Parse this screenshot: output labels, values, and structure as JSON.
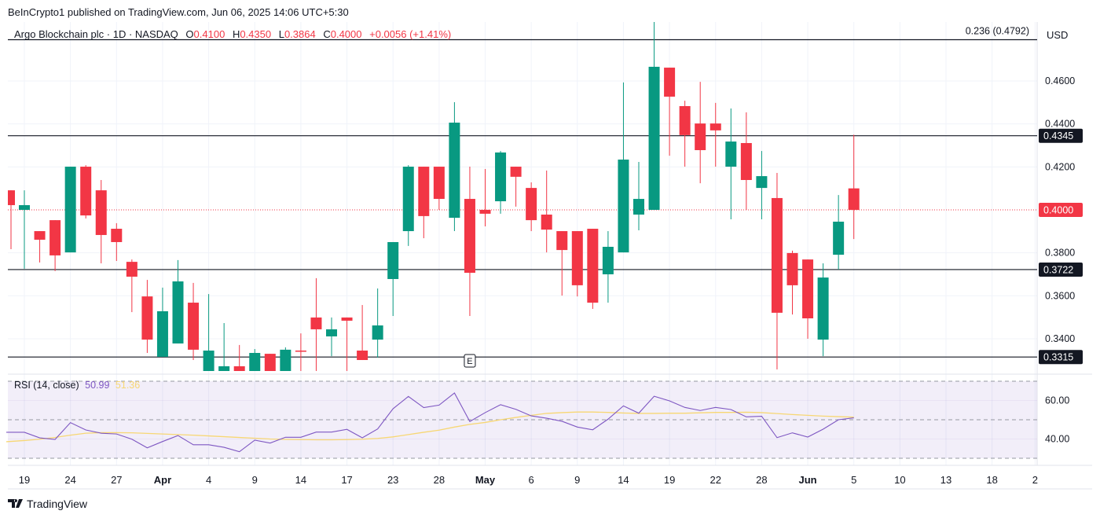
{
  "header": {
    "published": "BeInCrypto1 published on TradingView.com, Jun 06, 2025 14:06 UTC+5:30",
    "symbol": "Argo Blockchain plc · 1D · NASDAQ",
    "o_label": "O",
    "o_value": "0.4100",
    "h_label": "H",
    "h_value": "0.4350",
    "l_label": "L",
    "l_value": "0.3864",
    "c_label": "C",
    "c_value": "0.4000",
    "change": "+0.0056 (+1.41%)"
  },
  "footer": {
    "brand": "TradingView"
  },
  "colors": {
    "up": "#089981",
    "down": "#f23645",
    "rsi": "#7e57c2",
    "rsi_ma": "#f7d774",
    "level_line": "#131722"
  },
  "chart_data": [
    {
      "type": "candlestick",
      "currency": "USD",
      "ylim": [
        0.325,
        0.485
      ],
      "y_ticks": [
        "0.4600",
        "0.4400",
        "0.4200",
        "0.3800",
        "0.3600",
        "0.3400"
      ],
      "current_price": {
        "value": 0.4,
        "label": "0.4000"
      },
      "levels": [
        {
          "value": 0.4792,
          "label": "0.236 (0.4792)"
        },
        {
          "value": 0.4345,
          "label": "0.4345"
        },
        {
          "value": 0.3722,
          "label": "0.3722"
        },
        {
          "value": 0.3315,
          "label": "0.3315"
        }
      ],
      "event_marker": {
        "date": "Apr 30",
        "label": "E"
      },
      "x_ticks": [
        {
          "label": "19",
          "index": 1,
          "bold": false
        },
        {
          "label": "24",
          "index": 4,
          "bold": false
        },
        {
          "label": "27",
          "index": 7,
          "bold": false
        },
        {
          "label": "Apr",
          "index": 10,
          "bold": true
        },
        {
          "label": "4",
          "index": 13,
          "bold": false
        },
        {
          "label": "9",
          "index": 16,
          "bold": false
        },
        {
          "label": "14",
          "index": 19,
          "bold": false
        },
        {
          "label": "17",
          "index": 22,
          "bold": false
        },
        {
          "label": "23",
          "index": 25,
          "bold": false
        },
        {
          "label": "28",
          "index": 28,
          "bold": false
        },
        {
          "label": "May",
          "index": 31,
          "bold": true
        },
        {
          "label": "6",
          "index": 34,
          "bold": false
        },
        {
          "label": "9",
          "index": 37,
          "bold": false
        },
        {
          "label": "14",
          "index": 40,
          "bold": false
        },
        {
          "label": "19",
          "index": 43,
          "bold": false
        },
        {
          "label": "22",
          "index": 46,
          "bold": false
        },
        {
          "label": "28",
          "index": 49,
          "bold": false
        },
        {
          "label": "Jun",
          "index": 52,
          "bold": true
        },
        {
          "label": "5",
          "index": 55,
          "bold": false
        },
        {
          "label": "10",
          "index": 58,
          "bold": false
        },
        {
          "label": "13",
          "index": 61,
          "bold": false
        },
        {
          "label": "18",
          "index": 64,
          "bold": false
        },
        {
          "label": "2",
          "index": 66.8,
          "bold": false
        }
      ],
      "candles": [
        {
          "d": "Mar 18",
          "o": 0.4091,
          "h": 0.4091,
          "l": 0.3817,
          "c": 0.4022
        },
        {
          "d": "Mar 19",
          "o": 0.4,
          "h": 0.4091,
          "l": 0.3726,
          "c": 0.4022
        },
        {
          "d": "Mar 20",
          "o": 0.3901,
          "h": 0.3901,
          "l": 0.3755,
          "c": 0.3861
        },
        {
          "d": "Mar 21",
          "o": 0.3952,
          "h": 0.3952,
          "l": 0.3715,
          "c": 0.3788
        },
        {
          "d": "Mar 24",
          "o": 0.3802,
          "h": 0.4201,
          "l": 0.3802,
          "c": 0.4201
        },
        {
          "d": "Mar 25",
          "o": 0.4201,
          "h": 0.4208,
          "l": 0.396,
          "c": 0.3974
        },
        {
          "d": "Mar 26",
          "o": 0.4091,
          "h": 0.4139,
          "l": 0.3751,
          "c": 0.3883
        },
        {
          "d": "Mar 27",
          "o": 0.3912,
          "h": 0.3938,
          "l": 0.3762,
          "c": 0.385
        },
        {
          "d": "Mar 28",
          "o": 0.3758,
          "h": 0.3769,
          "l": 0.3524,
          "c": 0.3689
        },
        {
          "d": "Mar 31",
          "o": 0.3597,
          "h": 0.3674,
          "l": 0.3334,
          "c": 0.3396
        },
        {
          "d": "Apr 1",
          "o": 0.3316,
          "h": 0.3638,
          "l": 0.3316,
          "c": 0.3528
        },
        {
          "d": "Apr 2",
          "o": 0.3378,
          "h": 0.3766,
          "l": 0.3378,
          "c": 0.3667
        },
        {
          "d": "Apr 3",
          "o": 0.3568,
          "h": 0.366,
          "l": 0.3301,
          "c": 0.3349
        },
        {
          "d": "Apr 4",
          "o": 0.323,
          "h": 0.3608,
          "l": 0.32,
          "c": 0.3345
        },
        {
          "d": "Apr 7",
          "o": 0.323,
          "h": 0.3473,
          "l": 0.32,
          "c": 0.3272
        },
        {
          "d": "Apr 8",
          "o": 0.3272,
          "h": 0.3371,
          "l": 0.32,
          "c": 0.323
        },
        {
          "d": "Apr 9",
          "o": 0.323,
          "h": 0.3352,
          "l": 0.32,
          "c": 0.3334
        },
        {
          "d": "Apr 10",
          "o": 0.333,
          "h": 0.333,
          "l": 0.32,
          "c": 0.323
        },
        {
          "d": "Apr 11",
          "o": 0.323,
          "h": 0.336,
          "l": 0.32,
          "c": 0.3349
        },
        {
          "d": "Apr 14",
          "o": 0.3345,
          "h": 0.3425,
          "l": 0.323,
          "c": 0.3342
        },
        {
          "d": "Apr 15",
          "o": 0.3499,
          "h": 0.3682,
          "l": 0.325,
          "c": 0.3444
        },
        {
          "d": "Apr 16",
          "o": 0.3411,
          "h": 0.3499,
          "l": 0.3319,
          "c": 0.3444
        },
        {
          "d": "Apr 17",
          "o": 0.3499,
          "h": 0.3499,
          "l": 0.325,
          "c": 0.3484
        },
        {
          "d": "Apr 21",
          "o": 0.3345,
          "h": 0.3557,
          "l": 0.3301,
          "c": 0.3301
        },
        {
          "d": "Apr 22",
          "o": 0.3396,
          "h": 0.3634,
          "l": 0.3312,
          "c": 0.3462
        },
        {
          "d": "Apr 23",
          "o": 0.3678,
          "h": 0.385,
          "l": 0.3506,
          "c": 0.385
        },
        {
          "d": "Apr 24",
          "o": 0.3901,
          "h": 0.4208,
          "l": 0.3832,
          "c": 0.4201
        },
        {
          "d": "Apr 25",
          "o": 0.4201,
          "h": 0.4201,
          "l": 0.3868,
          "c": 0.3971
        },
        {
          "d": "Apr 28",
          "o": 0.4201,
          "h": 0.4201,
          "l": 0.4,
          "c": 0.4051
        },
        {
          "d": "Apr 29",
          "o": 0.3963,
          "h": 0.4501,
          "l": 0.3901,
          "c": 0.4406
        },
        {
          "d": "Apr 30",
          "o": 0.4051,
          "h": 0.4201,
          "l": 0.3506,
          "c": 0.3707
        },
        {
          "d": "May 1",
          "o": 0.4,
          "h": 0.419,
          "l": 0.3923,
          "c": 0.3982
        },
        {
          "d": "May 2",
          "o": 0.404,
          "h": 0.4274,
          "l": 0.3982,
          "c": 0.4267
        },
        {
          "d": "May 5",
          "o": 0.4201,
          "h": 0.4201,
          "l": 0.4015,
          "c": 0.4154
        },
        {
          "d": "May 6",
          "o": 0.4102,
          "h": 0.4128,
          "l": 0.3901,
          "c": 0.3952
        },
        {
          "d": "May 7",
          "o": 0.3978,
          "h": 0.4183,
          "l": 0.3802,
          "c": 0.3908
        },
        {
          "d": "May 8",
          "o": 0.3901,
          "h": 0.3901,
          "l": 0.3601,
          "c": 0.3813
        },
        {
          "d": "May 9",
          "o": 0.3901,
          "h": 0.3901,
          "l": 0.3597,
          "c": 0.3649
        },
        {
          "d": "May 12",
          "o": 0.3912,
          "h": 0.3912,
          "l": 0.3539,
          "c": 0.3568
        },
        {
          "d": "May 13",
          "o": 0.37,
          "h": 0.3901,
          "l": 0.3568,
          "c": 0.3828
        },
        {
          "d": "May 14",
          "o": 0.3802,
          "h": 0.4593,
          "l": 0.3802,
          "c": 0.4234
        },
        {
          "d": "May 15",
          "o": 0.3978,
          "h": 0.4223,
          "l": 0.3905,
          "c": 0.4051
        },
        {
          "d": "May 16",
          "o": 0.4,
          "h": 0.4878,
          "l": 0.4,
          "c": 0.4666
        },
        {
          "d": "May 19",
          "o": 0.4662,
          "h": 0.4662,
          "l": 0.4252,
          "c": 0.4527
        },
        {
          "d": "May 20",
          "o": 0.4483,
          "h": 0.4508,
          "l": 0.4201,
          "c": 0.4348
        },
        {
          "d": "May 21",
          "o": 0.4402,
          "h": 0.4596,
          "l": 0.4124,
          "c": 0.4278
        },
        {
          "d": "May 22",
          "o": 0.4402,
          "h": 0.4498,
          "l": 0.4201,
          "c": 0.437
        },
        {
          "d": "May 23",
          "o": 0.4201,
          "h": 0.4472,
          "l": 0.3956,
          "c": 0.4318
        },
        {
          "d": "May 27",
          "o": 0.4311,
          "h": 0.4454,
          "l": 0.4,
          "c": 0.4139
        },
        {
          "d": "May 28",
          "o": 0.4102,
          "h": 0.4274,
          "l": 0.3956,
          "c": 0.4157
        },
        {
          "d": "May 29",
          "o": 0.4055,
          "h": 0.4172,
          "l": 0.3257,
          "c": 0.3521
        },
        {
          "d": "May 30",
          "o": 0.3799,
          "h": 0.381,
          "l": 0.3513,
          "c": 0.3649
        },
        {
          "d": "Jun 2",
          "o": 0.3769,
          "h": 0.3769,
          "l": 0.34,
          "c": 0.3495
        },
        {
          "d": "Jun 3",
          "o": 0.3396,
          "h": 0.3751,
          "l": 0.3319,
          "c": 0.3685
        },
        {
          "d": "Jun 4",
          "o": 0.3791,
          "h": 0.4069,
          "l": 0.3722,
          "c": 0.3945
        },
        {
          "d": "Jun 5",
          "o": 0.41,
          "h": 0.435,
          "l": 0.3864,
          "c": 0.4
        }
      ]
    },
    {
      "type": "line",
      "title": "RSI (14, close)",
      "value_label": "50.99",
      "ma_label": "51.36",
      "ylim": [
        28,
        72
      ],
      "bands": [
        70,
        50,
        30
      ],
      "y_ticks": [
        "60.00",
        "40.00"
      ],
      "series": [
        {
          "values": [
            43.5,
            43.5,
            40.6,
            39.8,
            48.5,
            44.7,
            43.0,
            42.6,
            39.9,
            35.4,
            38.7,
            41.8,
            37.0,
            37.0,
            35.7,
            33.4,
            39.4,
            37.9,
            40.9,
            40.9,
            43.6,
            43.6,
            45.0,
            40.6,
            45.2,
            55.7,
            62.1,
            56.3,
            57.6,
            63.9,
            49.1,
            53.7,
            57.8,
            55.4,
            52.0,
            50.8,
            49.2,
            46.2,
            44.8,
            50.3,
            57.2,
            53.4,
            62.2,
            59.8,
            56.4,
            54.8,
            56.4,
            55.3,
            51.5,
            51.8,
            40.7,
            43.2,
            41.0,
            45.1,
            50.0,
            50.99
          ]
        },
        {
          "values": [
            38.6,
            39.2,
            39.9,
            40.8,
            42.0,
            43.0,
            43.3,
            43.3,
            43.2,
            42.9,
            42.6,
            42.3,
            42.0,
            41.6,
            41.2,
            40.8,
            40.4,
            40.0,
            39.8,
            39.7,
            39.6,
            39.6,
            39.7,
            39.9,
            40.3,
            41.1,
            42.3,
            43.5,
            44.6,
            46.2,
            47.6,
            48.6,
            50.0,
            51.2,
            52.3,
            53.3,
            53.7,
            54.0,
            54.0,
            53.8,
            53.5,
            53.3,
            53.3,
            53.4,
            53.4,
            53.6,
            53.8,
            53.8,
            53.9,
            53.7,
            53.2,
            52.7,
            52.3,
            51.9,
            51.6,
            51.36
          ]
        }
      ]
    }
  ]
}
